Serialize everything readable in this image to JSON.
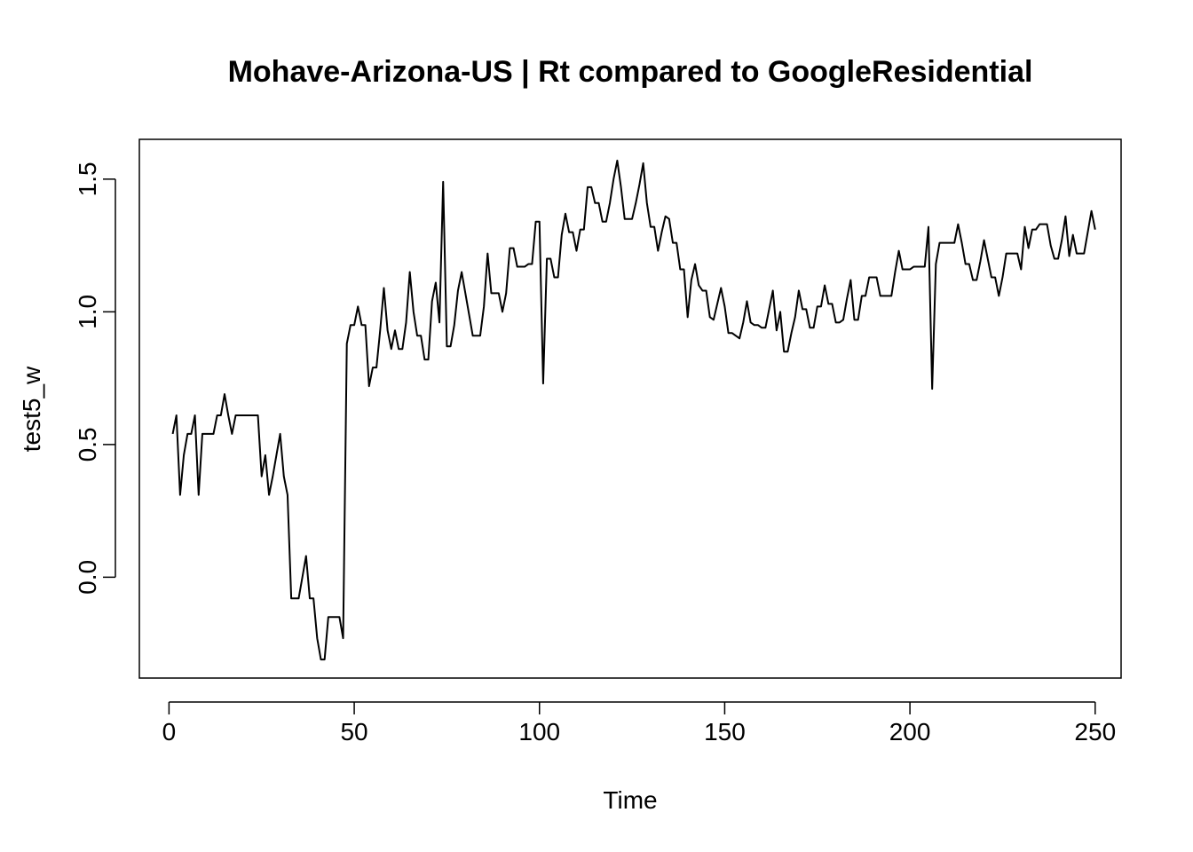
{
  "chart_data": {
    "type": "line",
    "title": "Mohave-Arizona-US | Rt compared to GoogleResidential",
    "xlabel": "Time",
    "ylabel": "test5_w",
    "xlim": [
      -8,
      257
    ],
    "ylim": [
      -0.38,
      1.65
    ],
    "x_ticks": [
      0,
      50,
      100,
      150,
      200,
      250
    ],
    "x_tick_labels": [
      "0",
      "50",
      "100",
      "150",
      "200",
      "250"
    ],
    "y_ticks": [
      0.0,
      0.5,
      1.0,
      1.5
    ],
    "y_tick_labels": [
      "0.0",
      "0.5",
      "1.0",
      "1.5"
    ],
    "grid": false,
    "legend": "none",
    "series": [
      {
        "color": "#000000",
        "x_start": 1,
        "values": [
          0.54,
          0.61,
          0.31,
          0.46,
          0.54,
          0.54,
          0.61,
          0.31,
          0.54,
          0.54,
          0.54,
          0.54,
          0.61,
          0.61,
          0.69,
          0.61,
          0.54,
          0.61,
          0.61,
          0.61,
          0.61,
          0.61,
          0.61,
          0.61,
          0.38,
          0.46,
          0.31,
          0.38,
          0.46,
          0.54,
          0.38,
          0.31,
          -0.08,
          -0.08,
          -0.08,
          0.0,
          0.08,
          -0.08,
          -0.08,
          -0.23,
          -0.31,
          -0.31,
          -0.15,
          -0.15,
          -0.15,
          -0.15,
          -0.23,
          0.88,
          0.95,
          0.95,
          1.02,
          0.95,
          0.95,
          0.72,
          0.79,
          0.79,
          0.93,
          1.09,
          0.93,
          0.86,
          0.93,
          0.86,
          0.86,
          0.96,
          1.15,
          1.0,
          0.91,
          0.91,
          0.82,
          0.82,
          1.04,
          1.11,
          0.96,
          1.49,
          0.87,
          0.87,
          0.95,
          1.08,
          1.15,
          1.07,
          0.99,
          0.91,
          0.91,
          0.91,
          1.02,
          1.22,
          1.07,
          1.07,
          1.07,
          1.0,
          1.07,
          1.24,
          1.24,
          1.17,
          1.17,
          1.17,
          1.18,
          1.18,
          1.34,
          1.34,
          0.73,
          1.2,
          1.2,
          1.13,
          1.13,
          1.29,
          1.37,
          1.3,
          1.3,
          1.23,
          1.31,
          1.31,
          1.47,
          1.47,
          1.41,
          1.41,
          1.34,
          1.34,
          1.41,
          1.5,
          1.57,
          1.47,
          1.35,
          1.35,
          1.35,
          1.41,
          1.48,
          1.56,
          1.41,
          1.32,
          1.32,
          1.23,
          1.3,
          1.36,
          1.35,
          1.26,
          1.26,
          1.16,
          1.16,
          0.98,
          1.12,
          1.18,
          1.1,
          1.08,
          1.08,
          0.98,
          0.97,
          1.03,
          1.09,
          1.02,
          0.92,
          0.92,
          0.91,
          0.9,
          0.96,
          1.04,
          0.96,
          0.95,
          0.95,
          0.94,
          0.94,
          1.01,
          1.08,
          0.93,
          1.0,
          0.85,
          0.85,
          0.92,
          0.98,
          1.08,
          1.01,
          1.01,
          0.94,
          0.94,
          1.02,
          1.02,
          1.1,
          1.03,
          1.03,
          0.96,
          0.96,
          0.97,
          1.05,
          1.12,
          0.97,
          0.97,
          1.06,
          1.06,
          1.13,
          1.13,
          1.13,
          1.06,
          1.06,
          1.06,
          1.06,
          1.15,
          1.23,
          1.16,
          1.16,
          1.16,
          1.17,
          1.17,
          1.17,
          1.17,
          1.32,
          0.71,
          1.18,
          1.26,
          1.26,
          1.26,
          1.26,
          1.26,
          1.33,
          1.26,
          1.18,
          1.18,
          1.12,
          1.12,
          1.19,
          1.27,
          1.2,
          1.13,
          1.13,
          1.06,
          1.13,
          1.22,
          1.22,
          1.22,
          1.22,
          1.16,
          1.32,
          1.24,
          1.31,
          1.31,
          1.33,
          1.33,
          1.33,
          1.25,
          1.2,
          1.2,
          1.27,
          1.36,
          1.21,
          1.29,
          1.22,
          1.22,
          1.22,
          1.3,
          1.38,
          1.31
        ]
      }
    ]
  }
}
